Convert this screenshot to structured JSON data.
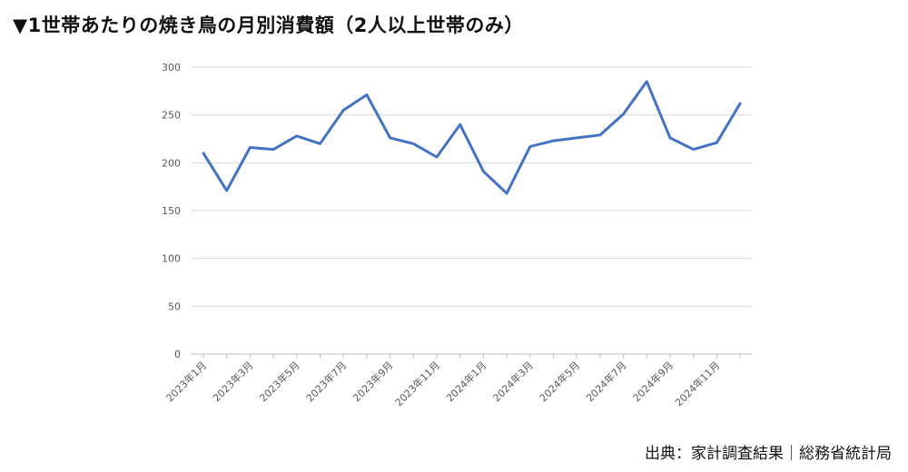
{
  "title": "▼1世帯あたりの焼き鳥の月別消費額（2人以上世帯のみ）",
  "source": "出典：家計調査結果｜総務省統計局",
  "chart_data": {
    "type": "line",
    "title": "▼1世帯あたりの焼き鳥の月別消費額（2人以上世帯のみ）",
    "xlabel": "",
    "ylabel": "",
    "ylim": [
      0,
      300
    ],
    "yticks": [
      0,
      50,
      100,
      150,
      200,
      250,
      300
    ],
    "grid": true,
    "legend": "none",
    "line_color": "#4472C4",
    "x": [
      "2023年1月",
      "2023年2月",
      "2023年3月",
      "2023年4月",
      "2023年5月",
      "2023年6月",
      "2023年7月",
      "2023年8月",
      "2023年9月",
      "2023年10月",
      "2023年11月",
      "2023年12月",
      "2024年1月",
      "2024年2月",
      "2024年3月",
      "2024年4月",
      "2024年5月",
      "2024年6月",
      "2024年7月",
      "2024年8月",
      "2024年9月",
      "2024年10月",
      "2024年11月",
      "2024年12月"
    ],
    "xtick_labels": [
      "2023年1月",
      "2023年3月",
      "2023年5月",
      "2023年7月",
      "2023年9月",
      "2023年11月",
      "2024年1月",
      "2024年3月",
      "2024年5月",
      "2024年7月",
      "2024年9月",
      "2024年11月"
    ],
    "series": [
      {
        "values": [
          210,
          171,
          216,
          214,
          228,
          220,
          255,
          271,
          226,
          220,
          206,
          240,
          191,
          168,
          217,
          223,
          226,
          229,
          251,
          285,
          226,
          214,
          221,
          262
        ]
      }
    ]
  }
}
